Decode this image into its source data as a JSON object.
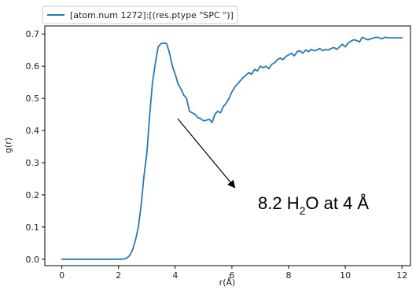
{
  "chart_data": {
    "type": "line",
    "xlabel": "r(Å)",
    "ylabel": "g(r)",
    "xlim": [
      -0.6,
      12.3
    ],
    "ylim": [
      -0.02,
      0.725
    ],
    "xticks": [
      0,
      2,
      4,
      6,
      8,
      10,
      12
    ],
    "yticks": [
      0.0,
      0.1,
      0.2,
      0.3,
      0.4,
      0.5,
      0.6,
      0.7
    ],
    "xtick_labels": [
      "0",
      "2",
      "4",
      "6",
      "8",
      "10",
      "12"
    ],
    "ytick_labels": [
      "0.0",
      "0.1",
      "0.2",
      "0.3",
      "0.4",
      "0.5",
      "0.6",
      "0.7"
    ],
    "grid": false,
    "legend_position": "top-left",
    "series": [
      {
        "name": "[atom.num 1272]:[(res.ptype \"SPC \")]",
        "color": "#2a78b5",
        "x": [
          0,
          0.5,
          1.0,
          1.5,
          2.0,
          2.1,
          2.2,
          2.3,
          2.4,
          2.5,
          2.6,
          2.7,
          2.8,
          2.9,
          3.0,
          3.1,
          3.2,
          3.3,
          3.4,
          3.5,
          3.6,
          3.7,
          3.8,
          3.9,
          4.0,
          4.1,
          4.2,
          4.3,
          4.4,
          4.5,
          4.6,
          4.7,
          4.8,
          4.9,
          5.0,
          5.1,
          5.2,
          5.3,
          5.4,
          5.5,
          5.6,
          5.7,
          5.8,
          5.9,
          6.0,
          6.1,
          6.2,
          6.3,
          6.4,
          6.5,
          6.6,
          6.7,
          6.8,
          6.9,
          7.0,
          7.1,
          7.2,
          7.3,
          7.4,
          7.5,
          7.6,
          7.7,
          7.8,
          7.9,
          8.0,
          8.1,
          8.2,
          8.3,
          8.4,
          8.5,
          8.6,
          8.7,
          8.8,
          8.9,
          9.0,
          9.1,
          9.2,
          9.3,
          9.4,
          9.5,
          9.6,
          9.7,
          9.8,
          9.9,
          10.0,
          10.1,
          10.2,
          10.3,
          10.4,
          10.5,
          10.6,
          10.7,
          10.8,
          10.9,
          11.0,
          11.1,
          11.2,
          11.3,
          11.4,
          11.5,
          11.6,
          11.7,
          11.8,
          11.9,
          12.0
        ],
        "y": [
          0.0,
          0.0,
          0.0,
          0.0,
          0.0,
          0.0,
          0.001,
          0.004,
          0.012,
          0.03,
          0.06,
          0.1,
          0.17,
          0.26,
          0.33,
          0.45,
          0.55,
          0.61,
          0.66,
          0.67,
          0.672,
          0.67,
          0.64,
          0.6,
          0.575,
          0.545,
          0.53,
          0.51,
          0.5,
          0.46,
          0.455,
          0.45,
          0.44,
          0.437,
          0.43,
          0.432,
          0.435,
          0.425,
          0.45,
          0.46,
          0.455,
          0.475,
          0.485,
          0.5,
          0.52,
          0.535,
          0.545,
          0.555,
          0.565,
          0.572,
          0.58,
          0.575,
          0.59,
          0.585,
          0.6,
          0.595,
          0.6,
          0.592,
          0.605,
          0.61,
          0.62,
          0.625,
          0.62,
          0.63,
          0.635,
          0.64,
          0.632,
          0.645,
          0.648,
          0.64,
          0.65,
          0.645,
          0.652,
          0.648,
          0.65,
          0.655,
          0.648,
          0.652,
          0.65,
          0.655,
          0.658,
          0.652,
          0.66,
          0.668,
          0.66,
          0.672,
          0.678,
          0.682,
          0.68,
          0.675,
          0.69,
          0.685,
          0.682,
          0.685,
          0.688,
          0.69,
          0.688,
          0.685,
          0.69,
          0.688,
          0.688,
          0.688,
          0.688,
          0.688,
          0.688
        ]
      }
    ],
    "annotations": [
      {
        "text_main": "8.2 H",
        "text_sub": "2",
        "text_tail": "O at 4 Å"
      }
    ]
  }
}
